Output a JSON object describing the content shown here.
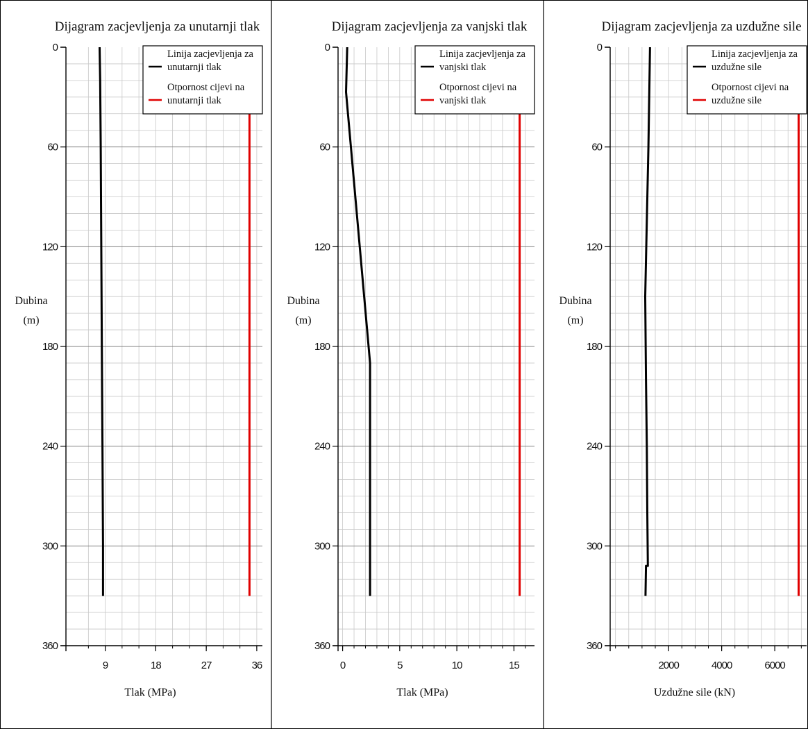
{
  "chart_data": [
    {
      "type": "line",
      "title": "Dijagram zacjevljenja za unutarnji tlak",
      "xlabel": "Tlak (MPa)",
      "ylabel": [
        "Dubina",
        "(m)"
      ],
      "xlim": [
        2,
        37
      ],
      "ylim": [
        360,
        0
      ],
      "y_inverted": true,
      "xticks": [
        "9",
        "18",
        "27",
        "36"
      ],
      "yticks": [
        "0",
        "60",
        "120",
        "180",
        "240",
        "300",
        "360"
      ],
      "grid": true,
      "legend_position": "top-right",
      "series": [
        {
          "name": [
            "Linija zacjevljenja za",
            "unutarnji tlak"
          ],
          "color": "#000000",
          "points": [
            [
              8.0,
              0
            ],
            [
              8.1,
              20
            ],
            [
              8.2,
              60
            ],
            [
              8.3,
              120
            ],
            [
              8.4,
              180
            ],
            [
              8.5,
              240
            ],
            [
              8.6,
              300
            ],
            [
              8.6,
              330
            ]
          ]
        },
        {
          "name": [
            "Otpornost cijevi na",
            "unutarnji tlak"
          ],
          "color": "#e00000",
          "points": [
            [
              34.7,
              0
            ],
            [
              34.7,
              330
            ]
          ]
        }
      ]
    },
    {
      "type": "line",
      "title": "Dijagram zacjevljenja za vanjski tlak",
      "xlabel": "Tlak (MPa)",
      "ylabel": [
        "Dubina",
        "(m)"
      ],
      "xlim": [
        -0.4,
        16.8
      ],
      "ylim": [
        360,
        0
      ],
      "y_inverted": true,
      "xticks": [
        "0",
        "5",
        "10",
        "15"
      ],
      "yticks": [
        "0",
        "60",
        "120",
        "180",
        "240",
        "300",
        "360"
      ],
      "grid": true,
      "legend_position": "top-right",
      "series": [
        {
          "name": [
            "Linija zacjevljenja za",
            "vanjski tlak"
          ],
          "color": "#000000",
          "points": [
            [
              0.4,
              0
            ],
            [
              0.3,
              27
            ],
            [
              2.4,
              190
            ],
            [
              2.4,
              330
            ]
          ]
        },
        {
          "name": [
            "Otpornost cijevi na",
            "vanjski tlak"
          ],
          "color": "#e00000",
          "points": [
            [
              15.5,
              0
            ],
            [
              15.5,
              330
            ]
          ]
        }
      ]
    },
    {
      "type": "line",
      "title": "Dijagram zacjevljenja za uzdužne sile",
      "xlabel": "Uzdužne sile (kN)",
      "ylabel": [
        "Dubina",
        "(m)"
      ],
      "xlim": [
        -200,
        7200
      ],
      "ylim": [
        360,
        0
      ],
      "y_inverted": true,
      "xticks": [
        "2000",
        "4000",
        "6000"
      ],
      "yticks": [
        "0",
        "60",
        "120",
        "180",
        "240",
        "300",
        "360"
      ],
      "grid": true,
      "legend_position": "top-right",
      "series": [
        {
          "name": [
            "Linija zacjevljenja za",
            "uzdužne sile"
          ],
          "color": "#000000",
          "points": [
            [
              1300,
              0
            ],
            [
              1240,
              60
            ],
            [
              1160,
              120
            ],
            [
              1120,
              150
            ],
            [
              1150,
              200
            ],
            [
              1180,
              240
            ],
            [
              1200,
              280
            ],
            [
              1220,
              312
            ],
            [
              1150,
              312
            ],
            [
              1130,
              330
            ]
          ]
        },
        {
          "name": [
            "Otpornost cijevi na",
            "uzdužne sile"
          ],
          "color": "#e00000",
          "points": [
            [
              6900,
              0
            ],
            [
              6900,
              330
            ]
          ]
        }
      ]
    }
  ]
}
